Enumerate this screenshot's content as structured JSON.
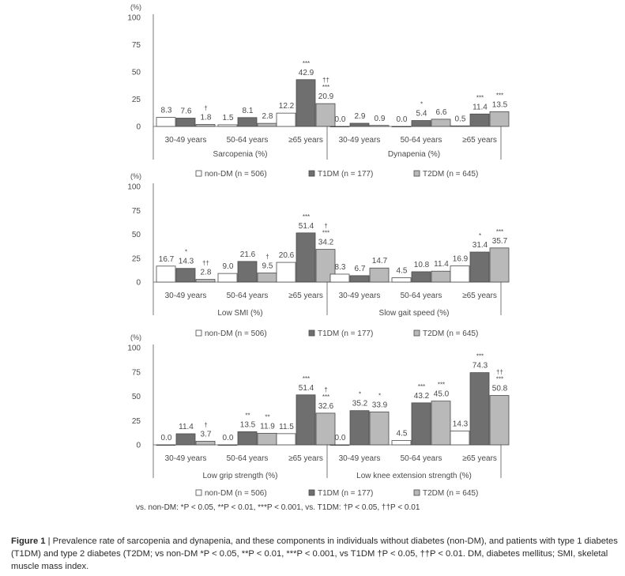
{
  "legend_items": [
    {
      "label": "non-DM (n = 506)",
      "fill": "#ffffff"
    },
    {
      "label": "T1DM (n = 177)",
      "fill": "#6f6f6f"
    },
    {
      "label": "T2DM (n = 645)",
      "fill": "#b9b9b9"
    }
  ],
  "footnote": "vs. non-DM: *P < 0.05, **P < 0.01, ***P < 0.001, vs. T1DM: †P < 0.05, ††P < 0.01",
  "caption": {
    "label": "Figure 1",
    "separator": "|",
    "text": "Prevalence rate of sarcopenia and dynapenia, and these components in individuals without diabetes (non-DM), and patients with type 1 diabetes (T1DM) and type 2 diabetes (T2DM; vs non-DM *P < 0.05, **P < 0.01, ***P < 0.001, vs T1DM †P < 0.05, ††P < 0.01. DM, diabetes mellitus; SMI, skeletal muscle mass index."
  },
  "chart_data": [
    {
      "type": "bar",
      "ylabel": "(%)",
      "ylim": [
        0,
        100
      ],
      "yticks": [
        0,
        25,
        50,
        75,
        100
      ],
      "series": [
        "non-DM (n = 506)",
        "T1DM (n = 177)",
        "T2DM (n = 645)"
      ],
      "panels": [
        {
          "title": "Sarcopenia (%)",
          "categories": [
            "30-49 years",
            "50-64 years",
            "≥65 years"
          ],
          "values": [
            [
              8.3,
              7.6,
              1.8
            ],
            [
              1.5,
              8.1,
              2.8
            ],
            [
              12.2,
              42.9,
              20.9
            ]
          ],
          "annotations": [
            [
              "",
              "",
              "†"
            ],
            [
              "",
              "",
              ""
            ],
            [
              "",
              "***",
              "*** ††"
            ]
          ]
        },
        {
          "title": "Dynapenia (%)",
          "categories": [
            "30-49 years",
            "50-64 years",
            "≥65 years"
          ],
          "values": [
            [
              0.0,
              2.9,
              0.9
            ],
            [
              0.0,
              5.4,
              6.6
            ],
            [
              0.5,
              11.4,
              13.5
            ]
          ],
          "annotations": [
            [
              "",
              "",
              ""
            ],
            [
              "",
              "*",
              ""
            ],
            [
              "",
              "***",
              "***"
            ]
          ]
        }
      ],
      "legend": [
        "non-DM (n = 506)",
        "T1DM (n = 177)",
        "T2DM (n = 645)"
      ]
    },
    {
      "type": "bar",
      "ylabel": "(%)",
      "ylim": [
        0,
        100
      ],
      "yticks": [
        0,
        25,
        50,
        75,
        100
      ],
      "series": [
        "non-DM (n = 506)",
        "T1DM (n = 177)",
        "T2DM (n = 645)"
      ],
      "panels": [
        {
          "title": "Low SMI (%)",
          "categories": [
            "30-49 years",
            "50-64 years",
            "≥65 years"
          ],
          "values": [
            [
              16.7,
              14.3,
              2.8
            ],
            [
              9.0,
              21.6,
              9.5
            ],
            [
              20.6,
              51.4,
              34.2
            ]
          ],
          "annotations": [
            [
              "",
              "*",
              "††"
            ],
            [
              "",
              "",
              "†"
            ],
            [
              "",
              "***",
              "*** †"
            ]
          ]
        },
        {
          "title": "Slow gait speed (%)",
          "categories": [
            "30-49 years",
            "50-64 years",
            "≥65 years"
          ],
          "values": [
            [
              8.3,
              6.7,
              14.7
            ],
            [
              4.5,
              10.8,
              11.4
            ],
            [
              16.9,
              31.4,
              35.7
            ]
          ],
          "annotations": [
            [
              "",
              "",
              ""
            ],
            [
              "",
              "",
              ""
            ],
            [
              "",
              "*",
              "***"
            ]
          ]
        }
      ],
      "legend": [
        "non-DM (n = 506)",
        "T1DM (n = 177)",
        "T2DM (n = 645)"
      ]
    },
    {
      "type": "bar",
      "ylabel": "(%)",
      "ylim": [
        0,
        100
      ],
      "yticks": [
        0,
        25,
        50,
        75,
        100
      ],
      "series": [
        "non-DM (n = 506)",
        "T1DM (n = 177)",
        "T2DM (n = 645)"
      ],
      "panels": [
        {
          "title": "Low grip strength (%)",
          "categories": [
            "30-49 years",
            "50-64 years",
            "≥65 years"
          ],
          "values": [
            [
              0.0,
              11.4,
              3.7
            ],
            [
              0.0,
              13.5,
              11.9
            ],
            [
              11.5,
              51.4,
              32.6
            ]
          ],
          "annotations": [
            [
              "",
              "",
              "†"
            ],
            [
              "",
              "**",
              "**"
            ],
            [
              "",
              "***",
              "*** †"
            ]
          ]
        },
        {
          "title": "Low knee extension strength (%)",
          "categories": [
            "30-49 years",
            "50-64 years",
            "≥65 years"
          ],
          "values": [
            [
              0.0,
              35.2,
              33.9
            ],
            [
              4.5,
              43.2,
              45.0
            ],
            [
              14.3,
              74.3,
              50.8
            ]
          ],
          "annotations": [
            [
              "",
              "*",
              "*"
            ],
            [
              "",
              "***",
              "***"
            ],
            [
              "",
              "***",
              "*** ††"
            ]
          ]
        }
      ],
      "legend": [
        "non-DM (n = 506)",
        "T1DM (n = 177)",
        "T2DM (n = 645)"
      ]
    }
  ]
}
